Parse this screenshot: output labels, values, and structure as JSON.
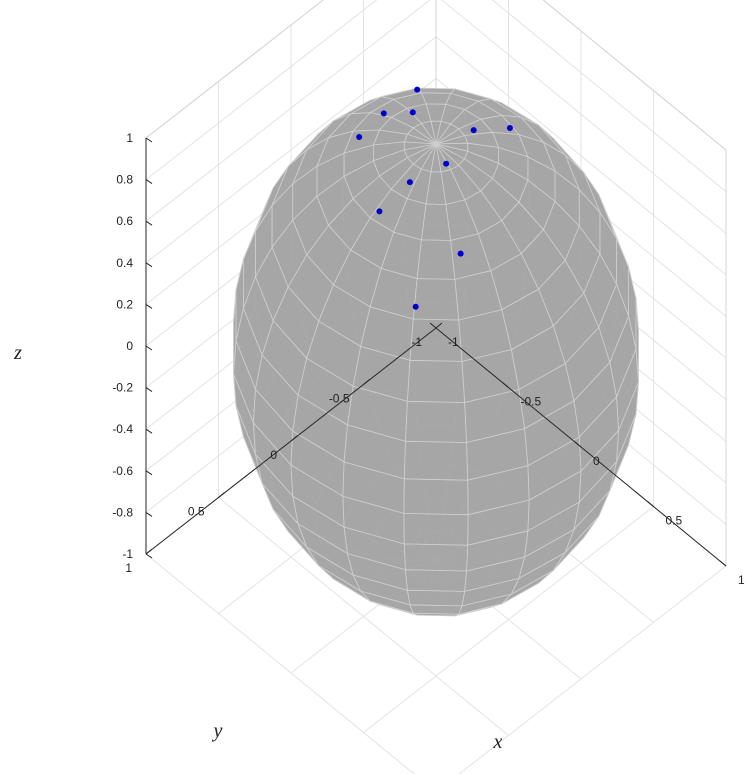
{
  "chart_data": {
    "type": "scatter",
    "title": "",
    "xlabel": "x",
    "ylabel": "y",
    "zlabel": "z",
    "xlim": [
      -1,
      1
    ],
    "ylim": [
      -1,
      1
    ],
    "zlim": [
      -1,
      1
    ],
    "grid": true,
    "sphere": {
      "radius": 1,
      "color": "#a6a6a6",
      "edge_color": "#cfcfcf"
    },
    "xticks": [
      "-1",
      "-0.5",
      "0",
      "0.5",
      "1"
    ],
    "yticks": [
      "-1",
      "-0.5",
      "0",
      "0.5",
      "1"
    ],
    "zticks": [
      "-1",
      "-0.8",
      "-0.6",
      "-0.4",
      "-0.2",
      "0",
      "0.2",
      "0.4",
      "0.6",
      "0.8",
      "1"
    ],
    "series": [
      {
        "color": "#0000cc",
        "points": [
          {
            "x": 0.43,
            "y": 0.26,
            "z": 0.86
          },
          {
            "x": 0.4,
            "y": 0.54,
            "z": 0.74
          },
          {
            "x": 0.02,
            "y": 0.41,
            "z": 0.91
          },
          {
            "x": 0.05,
            "y": 0.23,
            "z": 0.97
          },
          {
            "x": 0.11,
            "y": 0.04,
            "z": 0.99
          },
          {
            "x": -0.36,
            "y": 0.17,
            "z": 0.92
          },
          {
            "x": -0.25,
            "y": -0.09,
            "z": 0.96
          },
          {
            "x": -0.45,
            "y": -0.32,
            "z": 0.83
          },
          {
            "x": -0.37,
            "y": -0.01,
            "z": 0.93
          },
          {
            "x": 0.09,
            "y": -0.42,
            "z": 0.9
          },
          {
            "x": 0.04,
            "y": -0.22,
            "z": 0.97
          }
        ]
      }
    ]
  }
}
